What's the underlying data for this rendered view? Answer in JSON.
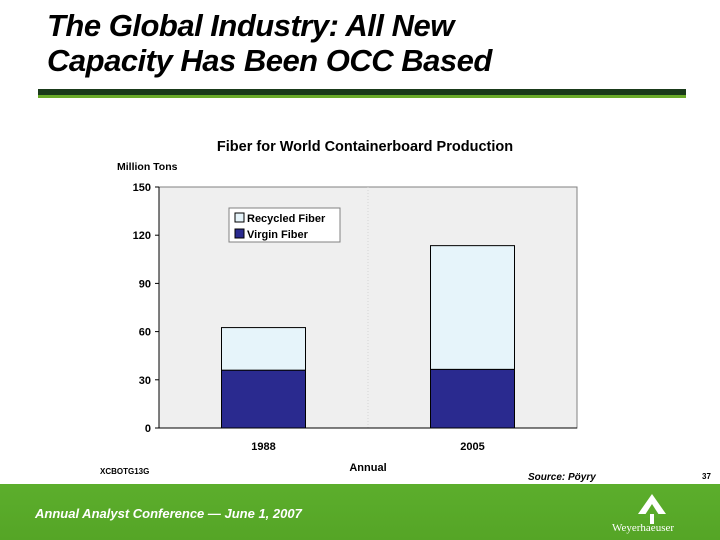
{
  "slide": {
    "title_line1": "The Global Industry: All New",
    "title_line2": "Capacity Has Been OCC Based",
    "code": "XCBOTG13G",
    "source": "Source: Pöyry",
    "page_number": "37"
  },
  "footer": {
    "conference": "Annual Analyst Conference — June 1, 2007",
    "logo_text": "Weyerhaeuser"
  },
  "colors": {
    "virgin_fiber": "#2a2a8f",
    "recycled_fiber": "#e6f4fa",
    "plot_background": "#efefef",
    "footer_green": "#5aab2a"
  },
  "chart_data": {
    "type": "bar",
    "stacked": true,
    "title": "Fiber for World Containerboard Production",
    "ylabel": "Million Tons",
    "xlabel": "Annual",
    "categories": [
      "1988",
      "2005"
    ],
    "series": [
      {
        "name": "Virgin Fiber",
        "values": [
          36,
          36.5
        ]
      },
      {
        "name": "Recycled Fiber",
        "values": [
          26.5,
          77
        ]
      }
    ],
    "ylim": [
      0,
      150
    ],
    "yticks": [
      "0",
      "30",
      "60",
      "90",
      "120",
      "150"
    ],
    "legend_entries": [
      "Recycled Fiber",
      "Virgin Fiber"
    ],
    "legend_position": "top-left",
    "grid": false
  }
}
